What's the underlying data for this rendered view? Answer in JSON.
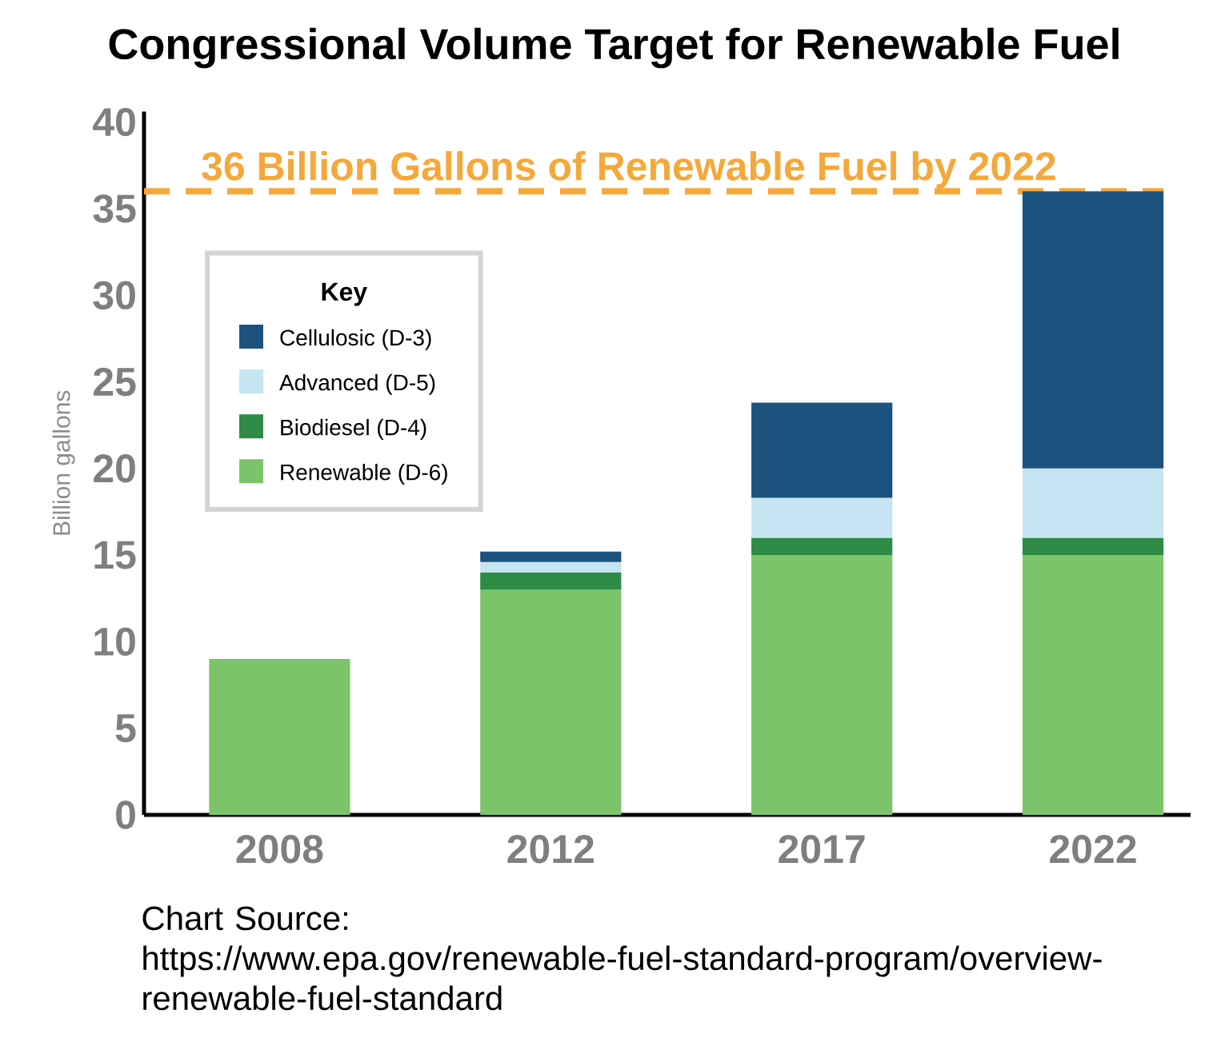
{
  "chart_data": {
    "type": "bar",
    "stacked": true,
    "title": "Congressional Volume Target for Renewable Fuel",
    "ylabel": "Billion gallons",
    "legend_title": "Key",
    "legend": "top left",
    "categories": [
      "2008",
      "2012",
      "2017",
      "2022"
    ],
    "series": [
      {
        "name": "Renewable (D-6)",
        "color": "#7bc46a",
        "values": [
          9.0,
          13.0,
          15.0,
          15.0
        ]
      },
      {
        "name": "Biodiesel (D-4)",
        "color": "#2e8b45",
        "values": [
          null,
          1.0,
          1.0,
          1.0
        ]
      },
      {
        "name": "Advanced (D-5)",
        "color": "#c5e5f2",
        "values": [
          null,
          0.6,
          2.3,
          4.0
        ]
      },
      {
        "name": "Cellulosic (D-3)",
        "color": "#1c537e",
        "values": [
          null,
          0.6,
          5.5,
          16.0
        ]
      }
    ],
    "ylim": [
      0,
      40.6
    ],
    "yticks": [
      0,
      5,
      10,
      15,
      20,
      25,
      30,
      35,
      40
    ],
    "ref_lines": [
      {
        "axis": "y",
        "value": 36,
        "label": "36 Billion Gallons of Renewable Fuel by 2022",
        "color": "#f5a83a",
        "line_style": "dashed"
      }
    ],
    "annotations": [
      "Chart Source:",
      "https://www.epa.gov/renewable-fuel-standard-program/overview-renewable-fuel-standard"
    ]
  }
}
